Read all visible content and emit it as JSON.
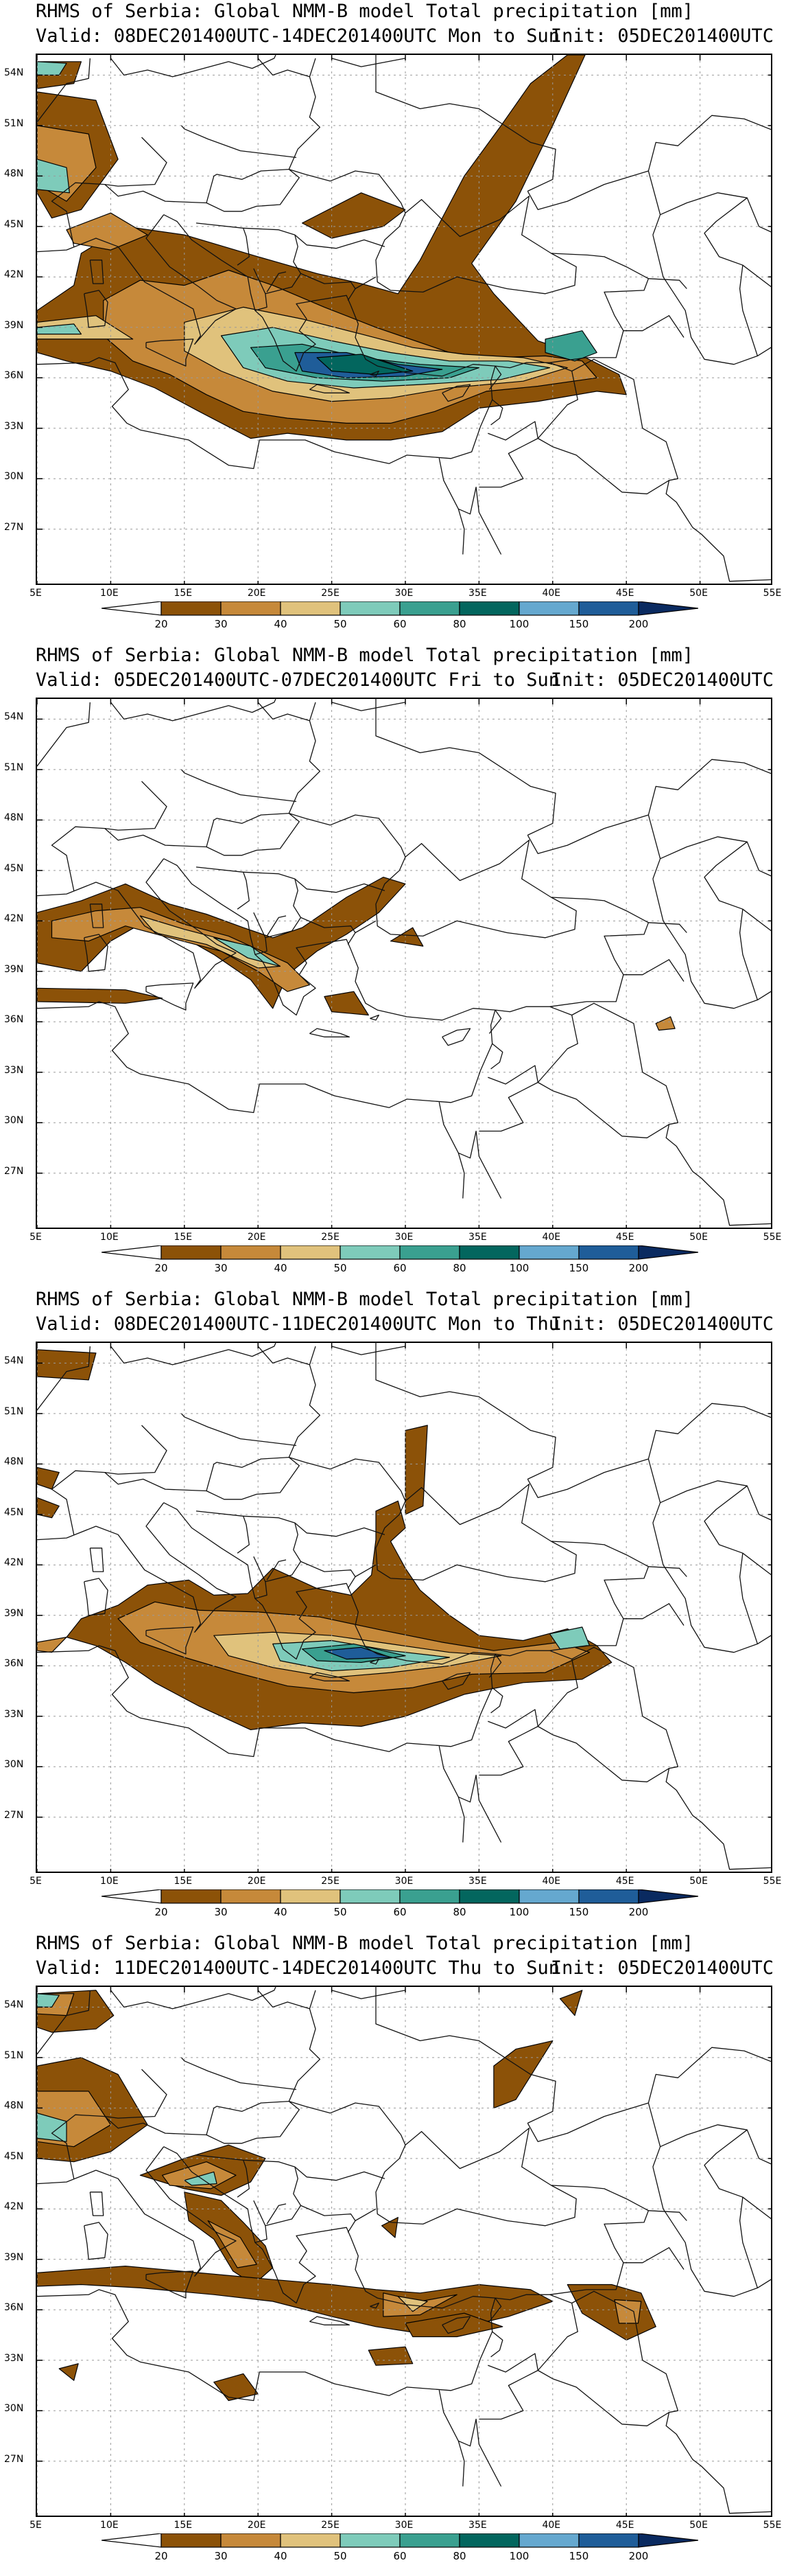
{
  "panels": [
    {
      "title": "RHMS of Serbia: Global NMM-B model Total precipitation [mm]",
      "valid": "Valid: 08DEC201400UTC-14DEC201400UTC Mon to Sun",
      "init": "Init: 05DEC201400UTC"
    },
    {
      "title": "RHMS of Serbia: Global NMM-B model Total precipitation [mm]",
      "valid": "Valid: 05DEC201400UTC-07DEC201400UTC Fri to Sun",
      "init": "Init: 05DEC201400UTC"
    },
    {
      "title": "RHMS of Serbia: Global NMM-B model Total precipitation [mm]",
      "valid": "Valid: 08DEC201400UTC-11DEC201400UTC Mon to Thu",
      "init": "Init: 05DEC201400UTC"
    },
    {
      "title": "RHMS of Serbia: Global NMM-B model Total precipitation [mm]",
      "valid": "Valid: 11DEC201400UTC-14DEC201400UTC Thu to Sun",
      "init": "Init: 05DEC201400UTC"
    }
  ],
  "lat_labels": [
    "54N",
    "51N",
    "48N",
    "45N",
    "42N",
    "39N",
    "36N",
    "33N",
    "30N",
    "27N"
  ],
  "lon_labels": [
    "5E",
    "10E",
    "15E",
    "20E",
    "25E",
    "30E",
    "35E",
    "40E",
    "45E",
    "50E",
    "55E"
  ],
  "colorbar": {
    "ticks": [
      "20",
      "30",
      "40",
      "50",
      "60",
      "80",
      "100",
      "150",
      "200"
    ],
    "colors": [
      "#ffffff",
      "#8c5208",
      "#c6893a",
      "#e0c27c",
      "#7ecbba",
      "#3aa090",
      "#03665e",
      "#65a8cf",
      "#1f5d99",
      "#0a2a60"
    ]
  }
}
